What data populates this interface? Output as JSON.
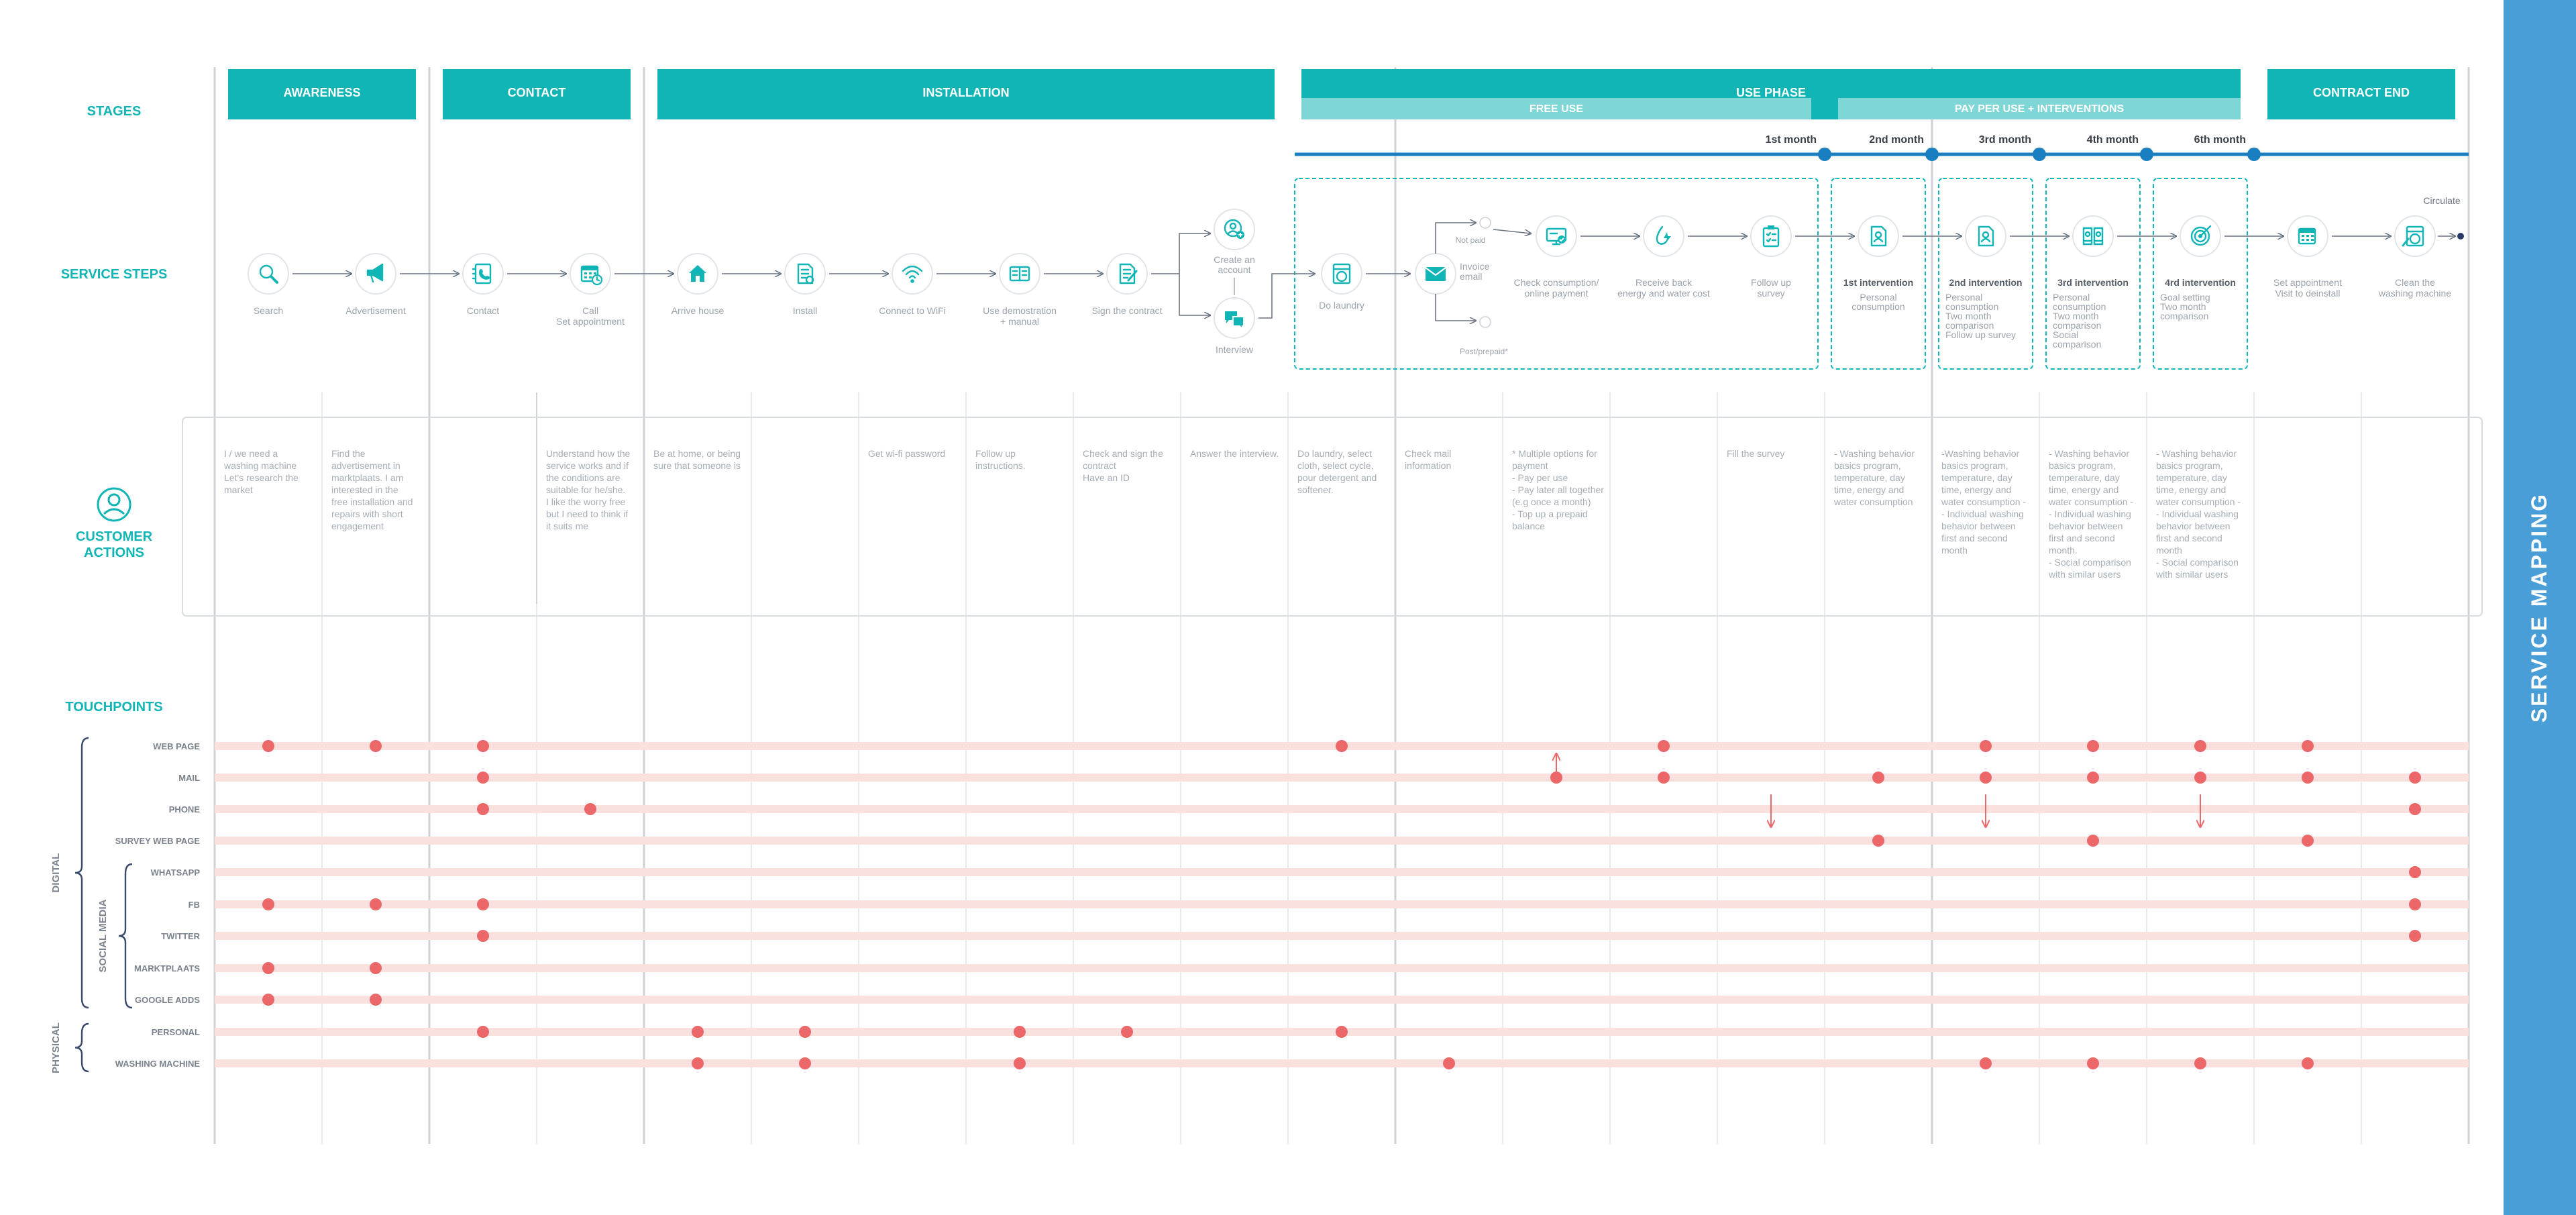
{
  "title": "SERVICE MAPPING",
  "colors": {
    "teal": "#12b5b5",
    "light_teal": "#7fd6d6",
    "blue": "#1a7fc0",
    "dot": "#ec6769",
    "band": "#fbe1de",
    "side_band": "#4a9ed8",
    "grey_text": "#9ba3ad"
  },
  "row_labels": {
    "stages": "STAGES",
    "service_steps": "SERVICE STEPS",
    "customer_actions": "CUSTOMER\nACTIONS",
    "touchpoints": "TOUCHPOINTS"
  },
  "stages": [
    {
      "label": "AWARENESS"
    },
    {
      "label": "CONTACT"
    },
    {
      "label": "INSTALLATION"
    },
    {
      "label": "USE PHASE"
    },
    {
      "label": "CONTRACT END"
    }
  ],
  "sub_stages": [
    {
      "label": "FREE USE"
    },
    {
      "label": "PAY PER USE + INTERVENTIONS"
    }
  ],
  "months": [
    "1st month",
    "2nd month",
    "3rd month",
    "4th month",
    "6th month"
  ],
  "service_steps": [
    {
      "label": "Search",
      "icon": "magnifier-icon"
    },
    {
      "label": "Advertisement",
      "icon": "megaphone-icon"
    },
    {
      "label": "Contact",
      "icon": "phonebook-icon"
    },
    {
      "label": "Call\nSet appointment",
      "icon": "calendar-clock-icon"
    },
    {
      "label": "Arrive house",
      "icon": "house-icon"
    },
    {
      "label": "Install",
      "icon": "install-document-icon"
    },
    {
      "label": "Connect to WiFi",
      "icon": "wifi-icon"
    },
    {
      "label": "Use demostration\n+ manual",
      "icon": "manual-icon"
    },
    {
      "label": "Sign the contract",
      "icon": "contract-icon"
    },
    {
      "label": "Create an\naccount",
      "icon": "account-icon"
    },
    {
      "label": "Interview",
      "icon": "chat-icon"
    },
    {
      "label": "Do laundry",
      "icon": "washing-machine-icon"
    },
    {
      "label": "Invoice\nemail",
      "icon": "envelope-icon"
    },
    {
      "label": "Check consumption/\nonline payment",
      "icon": "payment-screen-icon"
    },
    {
      "label": "Receive back\nenergy and water cost",
      "icon": "water-energy-icon"
    },
    {
      "label": "Follow up\nsurvey",
      "icon": "clipboard-icon"
    },
    {
      "label": "1st intervention",
      "sub": "Personal\nconsumption",
      "icon": "document-user-icon"
    },
    {
      "label": "2nd intervention",
      "sub": "Personal\nconsumption\nTwo  month\ncomparison\nFollow up survey",
      "icon": "document-user-icon"
    },
    {
      "label": "3rd intervention",
      "sub": "Personal\nconsumption\nTwo  month\ncomparison\nSocial\ncomparison",
      "icon": "documents-compare-icon"
    },
    {
      "label": "4rd intervention",
      "sub": "Goal setting\nTwo  month\ncomparison",
      "icon": "target-icon"
    },
    {
      "label": "Set appointment\nVisit to deinstall",
      "icon": "calendar-icon"
    },
    {
      "label": "Clean the\nwashing machine",
      "icon": "clean-machine-icon"
    }
  ],
  "branch_labels": {
    "not_paid": "Not paid",
    "post_prepaid": "Post/prepaid*",
    "circulate": "Circulate"
  },
  "customer_actions": [
    "I / we need  a\nwashing machine\nLet's research the\nmarket",
    "Find the\nadvertisement in\nmarktplaats. I am\ninterested in the\nfree installation and\nrepairs with short\nengagement",
    "",
    "Understand how the\nservice works and if\nthe conditions are\nsuitable for he/she.\n\nI like the worry free\nbut I need to think if\nit suits me",
    "Be at home, or being\nsure that someone is",
    "",
    "Get wi-fi password",
    "Follow up\ninstructions.",
    "Check and sign the\ncontract\nHave an ID",
    "Answer the interview.",
    "Do laundry, select\ncloth,  select cycle,\npour detergent and\nsoftener.",
    "Check mail\ninformation",
    "* Multiple options for\npayment\n- Pay per use\n- Pay later all together\n(e.g once a month)\n- Top up a prepaid\nbalance",
    "",
    "Fill the survey",
    "- Washing behavior\nbasics  program,\ntemperature, day\ntime, energy and\nwater consumption",
    "-Washing behavior\nbasics  program,\ntemperature, day\ntime, energy and\nwater consumption -\n- Individual washing\nbehavior between\nfirst and second\nmonth",
    "- Washing behavior\nbasics  program,\ntemperature, day\ntime, energy and\nwater consumption -\n- Individual washing\nbehavior between\nfirst and second\nmonth.\n- Social comparison\nwith similar users",
    "- Washing behavior\nbasics  program,\ntemperature, day\ntime, energy and\nwater consumption -\n- Individual washing\nbehavior between\nfirst and second\nmonth\n- Social comparison\nwith similar users"
  ],
  "touchpoint_groups": [
    {
      "label": "DIGITAL"
    },
    {
      "label": "SOCIAL MEDIA"
    },
    {
      "label": "PHYSICAL"
    }
  ],
  "touchpoints": [
    {
      "label": "WEB PAGE",
      "steps": [
        0,
        1,
        2,
        10,
        13,
        16,
        17,
        18,
        19
      ]
    },
    {
      "label": "MAIL",
      "steps": [
        2,
        12,
        13,
        15,
        16,
        17,
        18,
        19,
        20
      ]
    },
    {
      "label": "PHONE",
      "steps": [
        2,
        3,
        20
      ]
    },
    {
      "label": "SURVEY WEB PAGE",
      "steps": [
        15,
        17,
        19
      ]
    },
    {
      "label": "WHATSAPP",
      "steps": [
        20
      ]
    },
    {
      "label": "FB",
      "steps": [
        0,
        1,
        2,
        20
      ]
    },
    {
      "label": "TWITTER",
      "steps": [
        2,
        20
      ]
    },
    {
      "label": "MARKTPLAATS",
      "steps": [
        0,
        1
      ]
    },
    {
      "label": "GOOGLE ADDS",
      "steps": [
        0,
        1
      ]
    },
    {
      "label": "PERSONAL",
      "steps": [
        2,
        4,
        5,
        7,
        8,
        10
      ]
    },
    {
      "label": "WASHING MACHINE",
      "steps": [
        4,
        5,
        7,
        11,
        16,
        17,
        18,
        19
      ]
    }
  ]
}
